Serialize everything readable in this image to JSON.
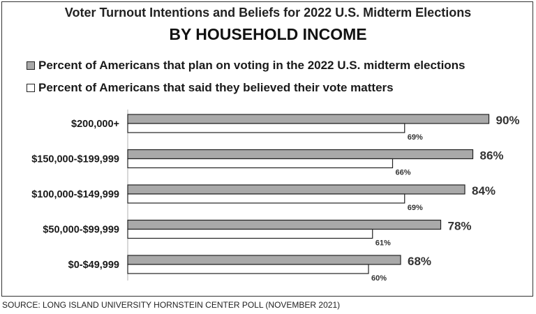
{
  "chart_data": {
    "type": "bar",
    "orientation": "horizontal",
    "title": "Voter Turnout Intentions and Beliefs for 2022 U.S. Midterm Elections",
    "subtitle": "BY HOUSEHOLD INCOME",
    "categories": [
      "$200,000+",
      "$150,000-$199,999",
      "$100,000-$149,999",
      "$50,000-$99,999",
      "$0-$49,999"
    ],
    "series": [
      {
        "name": "Percent of Americans that plan on voting in the 2022 U.S. midterm elections",
        "values": [
          90,
          86,
          84,
          78,
          68
        ],
        "labels": [
          "90%",
          "86%",
          "84%",
          "78%",
          "68%"
        ],
        "color": "#a9a9a9"
      },
      {
        "name": "Percent of Americans that said they believed their vote matters",
        "values": [
          69,
          66,
          69,
          61,
          60
        ],
        "labels": [
          "69%",
          "66%",
          "69%",
          "61%",
          "60%"
        ],
        "color": "#ffffff"
      }
    ],
    "xlim": [
      0,
      100
    ],
    "grid": false,
    "legend": "top-left"
  },
  "source": "SOURCE: LONG ISLAND UNIVERSITY HORNSTEIN CENTER POLL (NOVEMBER 2021)"
}
